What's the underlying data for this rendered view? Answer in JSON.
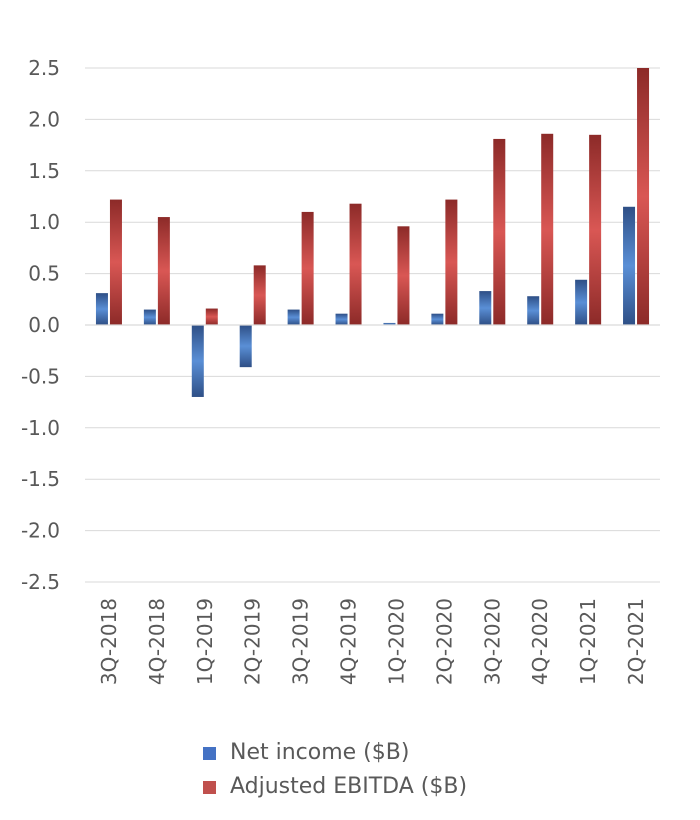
{
  "chart_data": {
    "type": "bar",
    "categories": [
      "3Q-2018",
      "4Q-2018",
      "1Q-2019",
      "2Q-2019",
      "3Q-2019",
      "4Q-2019",
      "1Q-2020",
      "2Q-2020",
      "3Q-2020",
      "4Q-2020",
      "1Q-2021",
      "2Q-2021"
    ],
    "series": [
      {
        "name": "Net income ($B)",
        "color": "#4472c4",
        "values": [
          0.31,
          0.15,
          -0.7,
          -0.41,
          0.15,
          0.11,
          0.02,
          0.11,
          0.33,
          0.28,
          0.44,
          1.15
        ]
      },
      {
        "name": "Adjusted EBITDA ($B)",
        "color": "#c0504d",
        "values": [
          1.22,
          1.05,
          0.16,
          0.58,
          1.1,
          1.18,
          0.96,
          1.22,
          1.81,
          1.86,
          1.85,
          2.5
        ]
      }
    ],
    "ylim": [
      -2.5,
      2.5
    ],
    "yticks": [
      "2.5",
      "2.0",
      "1.5",
      "1.0",
      "0.5",
      "0.0",
      "-0.5",
      "-1.0",
      "-1.5",
      "-2.0",
      "-2.5"
    ],
    "title": "",
    "xlabel": "",
    "ylabel": "",
    "grid": true,
    "legend_position": "bottom"
  }
}
